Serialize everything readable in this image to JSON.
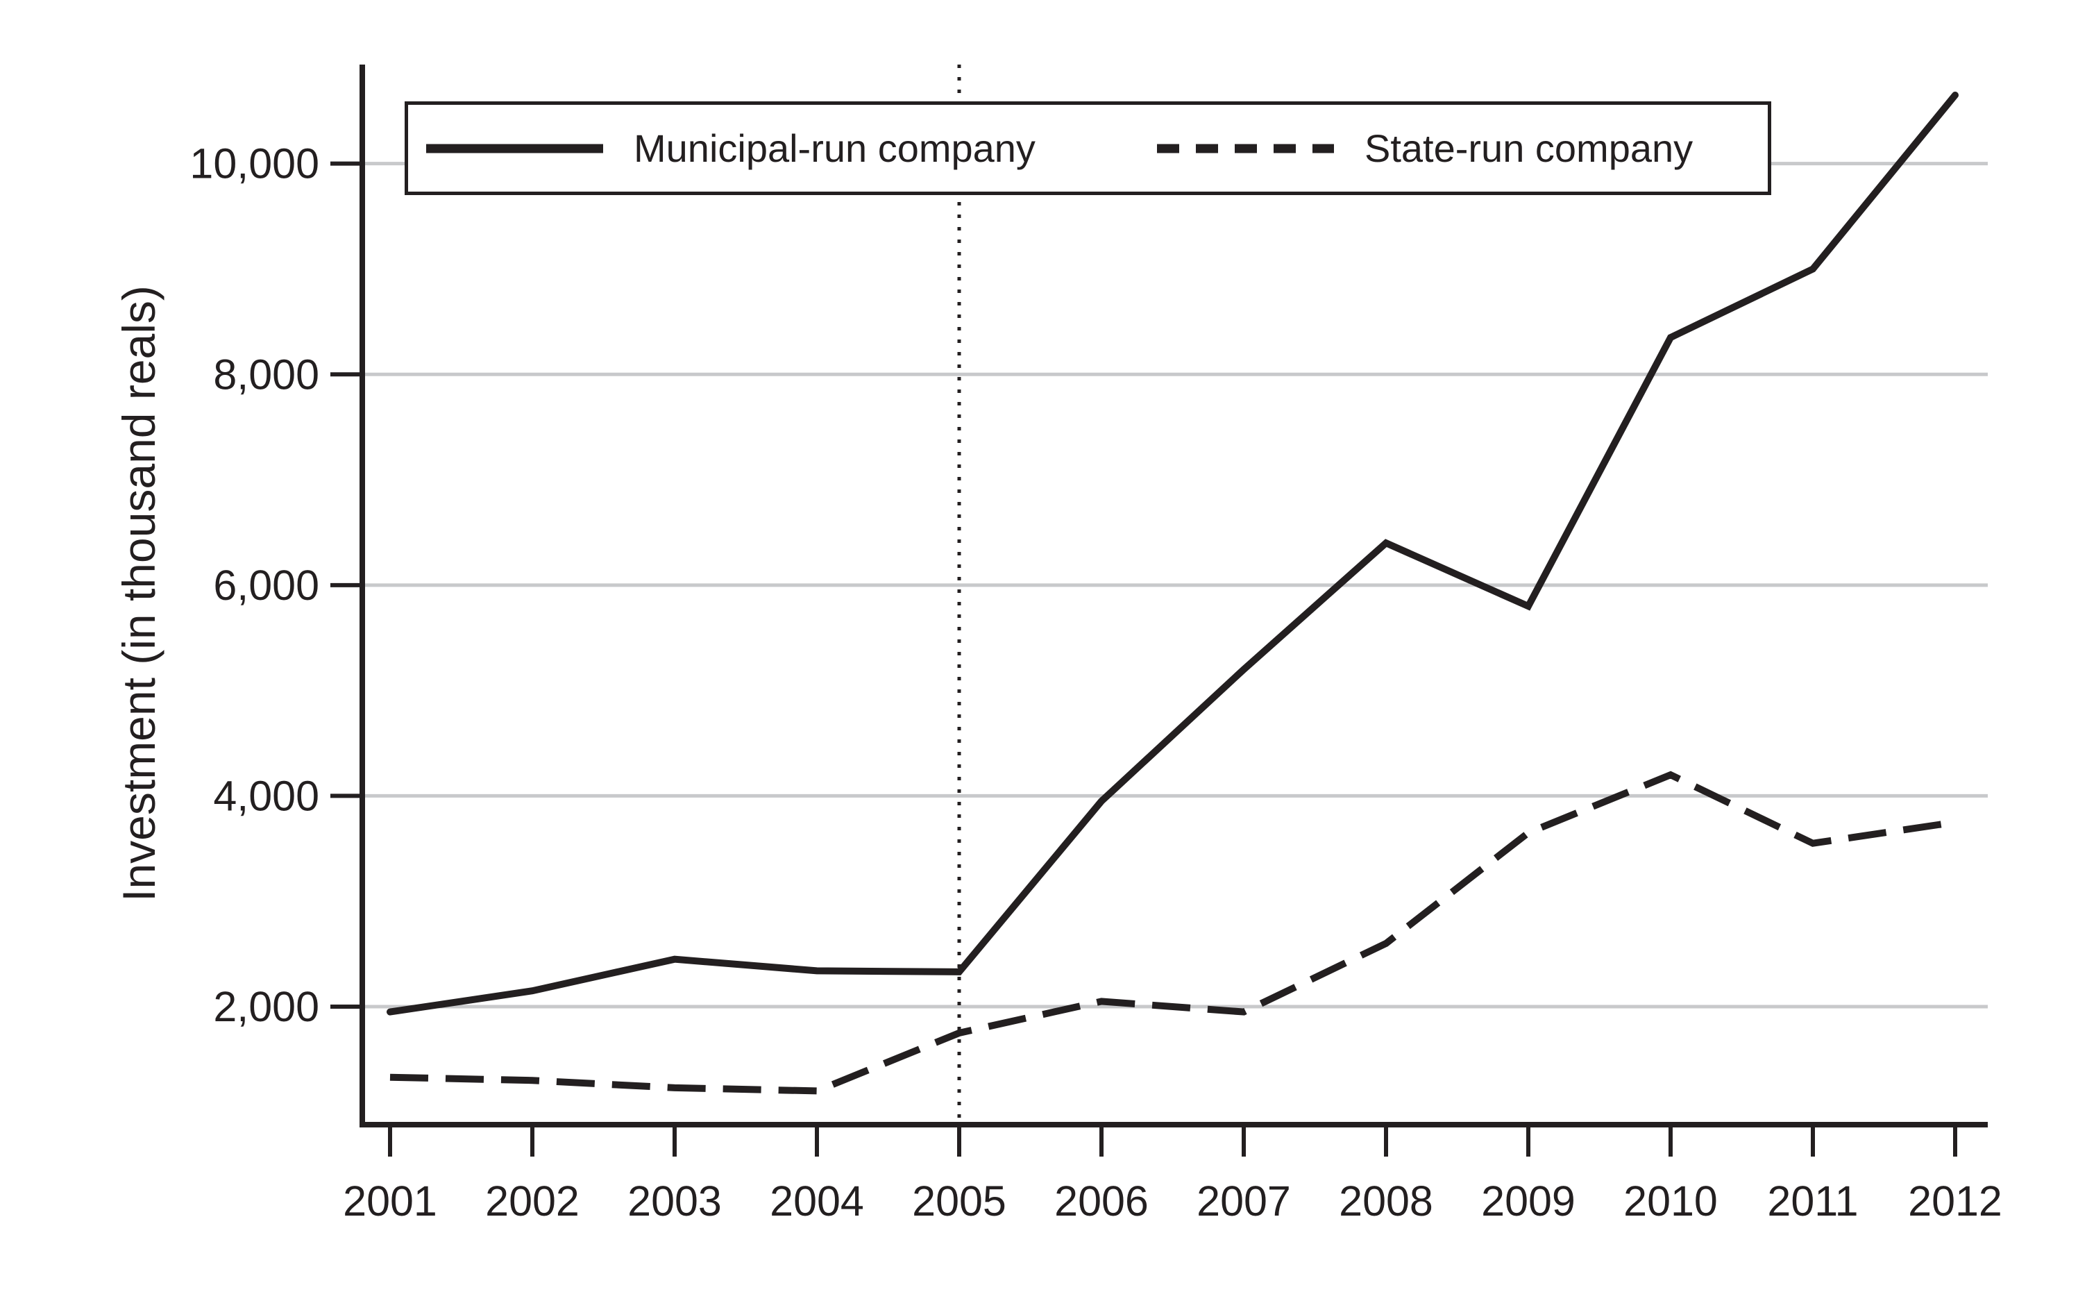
{
  "chart_data": {
    "type": "line",
    "title": "",
    "xlabel": "",
    "ylabel": "Investment (in thousand reals)",
    "x": [
      2001,
      2002,
      2003,
      2004,
      2005,
      2006,
      2007,
      2008,
      2009,
      2010,
      2011,
      2012
    ],
    "series": [
      {
        "name": "Municipal-run company",
        "style": "solid",
        "values": [
          1950,
          2150,
          2450,
          2340,
          2330,
          3950,
          5200,
          6400,
          5800,
          8350,
          9000,
          10650
        ]
      },
      {
        "name": "State-run company",
        "style": "dashed",
        "values": [
          1330,
          1300,
          1230,
          1200,
          1750,
          2050,
          1950,
          2600,
          3650,
          4200,
          3550,
          3750
        ]
      }
    ],
    "ylim": [
      880,
      10940
    ],
    "yticks": [
      2000,
      4000,
      6000,
      8000,
      10000
    ],
    "ytick_labels": [
      "2,000",
      "4,000",
      "6,000",
      "8,000",
      "10,000"
    ],
    "xtick_labels": [
      "2001",
      "2002",
      "2003",
      "2004",
      "2005",
      "2006",
      "2007",
      "2008",
      "2009",
      "2010",
      "2011",
      "2012"
    ],
    "grid": "horizontal-only",
    "legend_position": "top-inside-box",
    "vline": {
      "x": 2005,
      "style": "dotted"
    },
    "colors": {
      "line": "#231f20",
      "grid": "#c8c9cb",
      "background": "#ffffff"
    }
  }
}
